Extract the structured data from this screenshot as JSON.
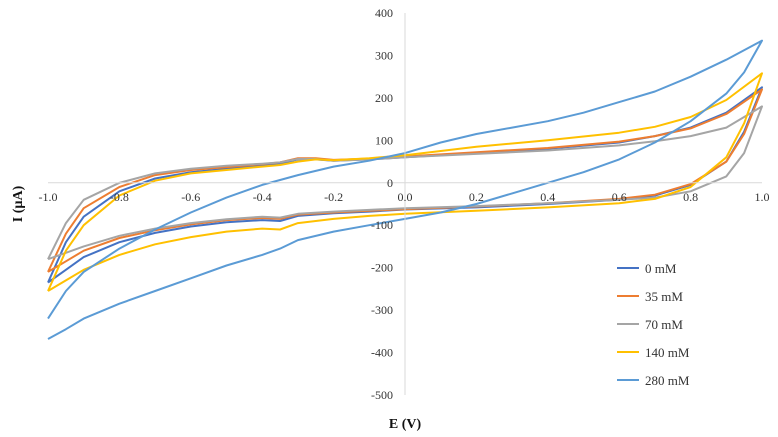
{
  "chart_data": {
    "type": "line",
    "title": "",
    "xlabel": "E (V)",
    "ylabel": "I (µA)",
    "xlim": [
      -1.0,
      1.0
    ],
    "ylim": [
      -500,
      400
    ],
    "x_ticks": [
      "-1.0",
      "-0.8",
      "-0.6",
      "-0.4",
      "-0.2",
      "0.0",
      "0.2",
      "0.4",
      "0.6",
      "0.8",
      "1.0"
    ],
    "y_ticks": [
      "400",
      "300",
      "200",
      "100",
      "0",
      "-100",
      "-200",
      "-300",
      "-400",
      "-500"
    ],
    "grid": false,
    "legend_position": "bottom-right",
    "series": [
      {
        "name": "0 mM",
        "color": "#4472C4",
        "points": [
          [
            -1.0,
            -235
          ],
          [
            -0.95,
            -205
          ],
          [
            -0.9,
            -175
          ],
          [
            -0.8,
            -140
          ],
          [
            -0.7,
            -118
          ],
          [
            -0.6,
            -103
          ],
          [
            -0.5,
            -93
          ],
          [
            -0.4,
            -88
          ],
          [
            -0.35,
            -90
          ],
          [
            -0.3,
            -78
          ],
          [
            -0.2,
            -72
          ],
          [
            -0.1,
            -68
          ],
          [
            0.0,
            -63
          ],
          [
            0.2,
            -58
          ],
          [
            0.4,
            -50
          ],
          [
            0.6,
            -40
          ],
          [
            0.7,
            -30
          ],
          [
            0.8,
            -5
          ],
          [
            0.9,
            50
          ],
          [
            0.95,
            120
          ],
          [
            1.0,
            225
          ],
          [
            0.9,
            165
          ],
          [
            0.8,
            130
          ],
          [
            0.7,
            110
          ],
          [
            0.6,
            95
          ],
          [
            0.4,
            80
          ],
          [
            0.2,
            70
          ],
          [
            0.0,
            60
          ],
          [
            -0.1,
            55
          ],
          [
            -0.2,
            52
          ],
          [
            -0.25,
            55
          ],
          [
            -0.3,
            55
          ],
          [
            -0.35,
            45
          ],
          [
            -0.4,
            40
          ],
          [
            -0.5,
            33
          ],
          [
            -0.6,
            25
          ],
          [
            -0.7,
            10
          ],
          [
            -0.8,
            -20
          ],
          [
            -0.9,
            -80
          ],
          [
            -0.95,
            -140
          ],
          [
            -1.0,
            -235
          ]
        ]
      },
      {
        "name": "35 mM",
        "color": "#ED7D31",
        "points": [
          [
            -1.0,
            -210
          ],
          [
            -0.95,
            -185
          ],
          [
            -0.9,
            -160
          ],
          [
            -0.8,
            -130
          ],
          [
            -0.7,
            -112
          ],
          [
            -0.6,
            -98
          ],
          [
            -0.5,
            -88
          ],
          [
            -0.4,
            -83
          ],
          [
            -0.35,
            -85
          ],
          [
            -0.3,
            -75
          ],
          [
            -0.2,
            -70
          ],
          [
            -0.1,
            -66
          ],
          [
            0.0,
            -62
          ],
          [
            0.2,
            -56
          ],
          [
            0.4,
            -48
          ],
          [
            0.6,
            -38
          ],
          [
            0.7,
            -28
          ],
          [
            0.8,
            -3
          ],
          [
            0.9,
            50
          ],
          [
            0.95,
            115
          ],
          [
            1.0,
            220
          ],
          [
            0.9,
            162
          ],
          [
            0.8,
            128
          ],
          [
            0.7,
            110
          ],
          [
            0.6,
            97
          ],
          [
            0.4,
            82
          ],
          [
            0.2,
            72
          ],
          [
            0.0,
            62
          ],
          [
            -0.1,
            57
          ],
          [
            -0.2,
            54
          ],
          [
            -0.25,
            58
          ],
          [
            -0.3,
            58
          ],
          [
            -0.35,
            48
          ],
          [
            -0.4,
            44
          ],
          [
            -0.5,
            37
          ],
          [
            -0.6,
            30
          ],
          [
            -0.7,
            18
          ],
          [
            -0.8,
            -10
          ],
          [
            -0.9,
            -60
          ],
          [
            -0.95,
            -120
          ],
          [
            -1.0,
            -210
          ]
        ]
      },
      {
        "name": "70 mM",
        "color": "#A5A5A5",
        "points": [
          [
            -1.0,
            -180
          ],
          [
            -0.95,
            -165
          ],
          [
            -0.9,
            -150
          ],
          [
            -0.8,
            -125
          ],
          [
            -0.7,
            -108
          ],
          [
            -0.6,
            -95
          ],
          [
            -0.5,
            -86
          ],
          [
            -0.4,
            -80
          ],
          [
            -0.35,
            -82
          ],
          [
            -0.3,
            -73
          ],
          [
            -0.2,
            -68
          ],
          [
            -0.1,
            -64
          ],
          [
            0.0,
            -60
          ],
          [
            0.2,
            -55
          ],
          [
            0.4,
            -48
          ],
          [
            0.6,
            -40
          ],
          [
            0.7,
            -35
          ],
          [
            0.8,
            -20
          ],
          [
            0.9,
            15
          ],
          [
            0.95,
            70
          ],
          [
            1.0,
            180
          ],
          [
            0.9,
            130
          ],
          [
            0.8,
            110
          ],
          [
            0.7,
            98
          ],
          [
            0.6,
            88
          ],
          [
            0.4,
            76
          ],
          [
            0.2,
            68
          ],
          [
            0.0,
            60
          ],
          [
            -0.1,
            55
          ],
          [
            -0.2,
            52
          ],
          [
            -0.25,
            56
          ],
          [
            -0.3,
            56
          ],
          [
            -0.35,
            48
          ],
          [
            -0.4,
            45
          ],
          [
            -0.5,
            40
          ],
          [
            -0.6,
            33
          ],
          [
            -0.7,
            22
          ],
          [
            -0.8,
            0
          ],
          [
            -0.9,
            -40
          ],
          [
            -0.95,
            -95
          ],
          [
            -1.0,
            -180
          ]
        ]
      },
      {
        "name": "140 mM",
        "color": "#FFC000",
        "points": [
          [
            -1.0,
            -255
          ],
          [
            -0.95,
            -230
          ],
          [
            -0.9,
            -205
          ],
          [
            -0.8,
            -170
          ],
          [
            -0.7,
            -145
          ],
          [
            -0.6,
            -128
          ],
          [
            -0.5,
            -115
          ],
          [
            -0.4,
            -108
          ],
          [
            -0.35,
            -110
          ],
          [
            -0.3,
            -95
          ],
          [
            -0.2,
            -85
          ],
          [
            -0.1,
            -78
          ],
          [
            0.0,
            -73
          ],
          [
            0.2,
            -66
          ],
          [
            0.4,
            -58
          ],
          [
            0.6,
            -48
          ],
          [
            0.7,
            -38
          ],
          [
            0.8,
            -10
          ],
          [
            0.9,
            60
          ],
          [
            0.95,
            140
          ],
          [
            1.0,
            258
          ],
          [
            0.9,
            195
          ],
          [
            0.8,
            155
          ],
          [
            0.7,
            132
          ],
          [
            0.6,
            118
          ],
          [
            0.4,
            100
          ],
          [
            0.2,
            85
          ],
          [
            0.0,
            65
          ],
          [
            -0.1,
            58
          ],
          [
            -0.2,
            53
          ],
          [
            -0.25,
            55
          ],
          [
            -0.3,
            50
          ],
          [
            -0.35,
            42
          ],
          [
            -0.4,
            38
          ],
          [
            -0.5,
            30
          ],
          [
            -0.6,
            22
          ],
          [
            -0.7,
            5
          ],
          [
            -0.8,
            -30
          ],
          [
            -0.9,
            -100
          ],
          [
            -0.95,
            -160
          ],
          [
            -1.0,
            -255
          ]
        ]
      },
      {
        "name": "280 mM",
        "color": "#5B9BD5",
        "points": [
          [
            -1.0,
            -368
          ],
          [
            -0.95,
            -345
          ],
          [
            -0.9,
            -320
          ],
          [
            -0.8,
            -285
          ],
          [
            -0.7,
            -255
          ],
          [
            -0.6,
            -225
          ],
          [
            -0.5,
            -195
          ],
          [
            -0.4,
            -170
          ],
          [
            -0.35,
            -155
          ],
          [
            -0.3,
            -135
          ],
          [
            -0.2,
            -115
          ],
          [
            -0.1,
            -100
          ],
          [
            0.0,
            -85
          ],
          [
            0.1,
            -70
          ],
          [
            0.2,
            -50
          ],
          [
            0.3,
            -25
          ],
          [
            0.4,
            0
          ],
          [
            0.5,
            25
          ],
          [
            0.6,
            55
          ],
          [
            0.7,
            95
          ],
          [
            0.8,
            145
          ],
          [
            0.9,
            210
          ],
          [
            0.95,
            260
          ],
          [
            1.0,
            335
          ],
          [
            0.9,
            290
          ],
          [
            0.8,
            250
          ],
          [
            0.7,
            215
          ],
          [
            0.6,
            190
          ],
          [
            0.5,
            165
          ],
          [
            0.4,
            145
          ],
          [
            0.3,
            130
          ],
          [
            0.2,
            115
          ],
          [
            0.1,
            95
          ],
          [
            0.0,
            70
          ],
          [
            -0.1,
            52
          ],
          [
            -0.2,
            38
          ],
          [
            -0.3,
            18
          ],
          [
            -0.4,
            -5
          ],
          [
            -0.5,
            -35
          ],
          [
            -0.6,
            -70
          ],
          [
            -0.7,
            -110
          ],
          [
            -0.8,
            -155
          ],
          [
            -0.9,
            -210
          ],
          [
            -0.95,
            -255
          ],
          [
            -1.0,
            -320
          ]
        ]
      }
    ]
  }
}
